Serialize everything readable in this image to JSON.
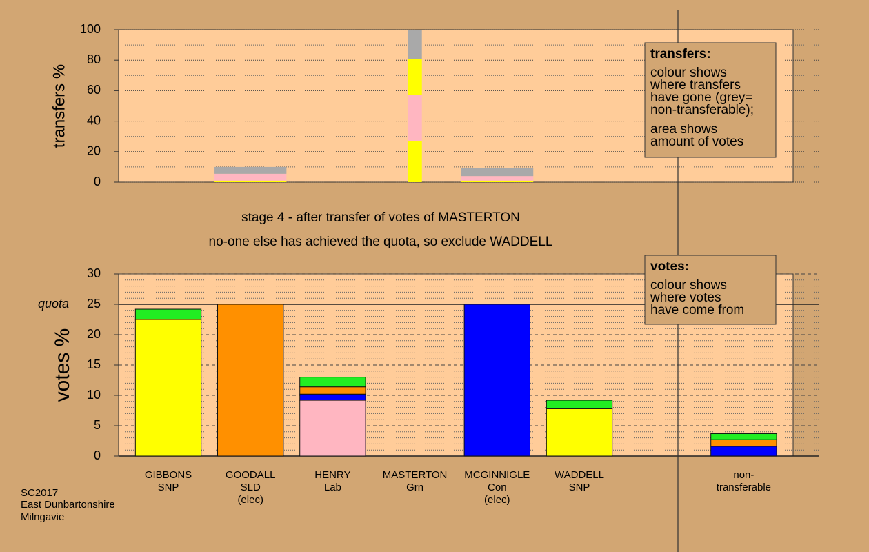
{
  "chart_data": [
    {
      "type": "bar",
      "stacked": true,
      "y_label": "transfers %",
      "ylim": [
        0,
        100
      ],
      "yticks": [
        0,
        20,
        40,
        60,
        80,
        100
      ],
      "minor_yticks": [
        10,
        30,
        50,
        70,
        90
      ],
      "bar_widths": [
        0,
        0.875,
        0,
        0.17,
        0.88,
        0,
        null,
        0
      ],
      "series": [
        {
          "color": "#ffff00",
          "values": [
            0,
            1,
            0,
            27,
            1,
            0,
            null,
            0
          ]
        },
        {
          "color": "#ffb6c1",
          "values": [
            0,
            4.5,
            0,
            30,
            3,
            0,
            null,
            0
          ]
        },
        {
          "color": "#ffff00",
          "values": [
            0,
            0,
            0,
            24,
            0,
            0,
            null,
            0
          ]
        },
        {
          "color": "#a9a9a9",
          "values": [
            0,
            4.5,
            0,
            19,
            5.5,
            0,
            null,
            0
          ]
        }
      ]
    },
    {
      "type": "bar",
      "stacked": true,
      "y_label": "votes %",
      "ylim": [
        0,
        30
      ],
      "yticks": [
        0,
        5,
        10,
        15,
        20,
        25,
        30
      ],
      "minor_yticks": [
        1,
        2,
        3,
        4,
        6,
        7,
        8,
        9,
        11,
        12,
        13,
        14,
        16,
        17,
        18,
        19,
        21,
        22,
        23,
        24,
        26,
        27,
        28,
        29
      ],
      "quota": 25,
      "quota_label": "quota",
      "categories": [
        [
          "GIBBONS",
          "SNP"
        ],
        [
          "GOODALL",
          "SLD",
          "(elec)"
        ],
        [
          "HENRY",
          "Lab"
        ],
        [
          "MASTERTON",
          "Grn"
        ],
        [
          "MCGINNIGLE",
          "Con",
          "(elec)"
        ],
        [
          "WADDELL",
          "SNP"
        ],
        null,
        [
          "non-",
          "transferable"
        ]
      ],
      "series": [
        {
          "color": "#ffff00",
          "values": [
            22.5,
            0,
            0,
            0,
            0,
            7.8,
            null,
            0
          ]
        },
        {
          "color": "#ffb6c1",
          "values": [
            0,
            0,
            9.2,
            0,
            0,
            0,
            null,
            0
          ]
        },
        {
          "color": "#0000ff",
          "values": [
            0,
            0,
            1,
            0,
            25,
            0,
            null,
            1.6
          ]
        },
        {
          "color": "#ff9000",
          "values": [
            0,
            25,
            1.2,
            0,
            0,
            0,
            null,
            1.1
          ]
        },
        {
          "color": "#22ee22",
          "values": [
            1.7,
            0,
            1.6,
            0,
            0,
            1.4,
            null,
            1
          ]
        }
      ]
    }
  ],
  "stage_text": [
    "stage 4 - after transfer of votes of MASTERTON",
    "no-one else has achieved the quota, so exclude WADDELL"
  ],
  "legend_boxes": [
    {
      "title": "transfers:",
      "paragraphs": [
        [
          "colour shows",
          "where transfers",
          "have gone (grey=",
          "non-transferable);"
        ],
        [
          "area shows",
          "amount of votes"
        ]
      ]
    },
    {
      "title": "votes:",
      "paragraphs": [
        [
          "colour shows",
          "where votes",
          "have come from"
        ]
      ]
    }
  ],
  "footer": [
    "SC2017",
    "East Dunbartonshire",
    "Milngavie"
  ]
}
